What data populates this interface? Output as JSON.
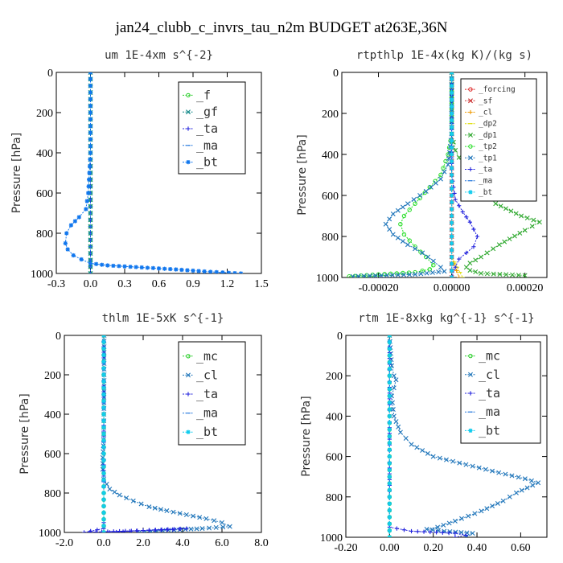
{
  "title": "jan24_clubb_c_invrs_tau_n2m  BUDGET at263E,36N",
  "chart_data": [
    {
      "type": "line",
      "title": "um  1E-4xm s^{-2}",
      "ylabel": "Pressure [hPa]",
      "xlim": [
        -0.3,
        1.5
      ],
      "ylim": [
        1000,
        0
      ],
      "xticks": [
        "-0.3",
        "0.0",
        "0.3",
        "0.6",
        "0.9",
        "1.2",
        "1.5"
      ],
      "xtickvals": [
        -0.3,
        0,
        0.3,
        0.6,
        0.9,
        1.2,
        1.5
      ],
      "yticks": [
        0,
        200,
        400,
        600,
        800,
        1000
      ],
      "legend": {
        "entries": [
          "_f",
          "_gf",
          "_ta",
          "_ma",
          "_bt"
        ]
      },
      "series": [
        {
          "name": "_f",
          "color": "#22cc22",
          "marker": "o",
          "x": [
            0,
            0,
            0,
            0,
            0,
            0,
            0,
            0,
            0,
            0,
            0
          ],
          "y": [
            0,
            100,
            200,
            300,
            400,
            500,
            600,
            700,
            800,
            900,
            1000
          ]
        },
        {
          "name": "_gf",
          "color": "#118888",
          "marker": "x",
          "x": [
            0,
            0,
            0,
            0,
            0,
            0,
            0,
            0,
            0,
            0,
            0
          ],
          "y": [
            0,
            100,
            200,
            300,
            400,
            500,
            600,
            700,
            800,
            900,
            1000
          ]
        },
        {
          "name": "_ta",
          "color": "#2222dd",
          "marker": "+",
          "x": [
            0,
            0,
            0,
            0,
            0,
            0,
            0,
            0,
            0,
            0,
            0
          ],
          "y": [
            0,
            100,
            200,
            300,
            400,
            500,
            600,
            700,
            800,
            900,
            1000
          ]
        },
        {
          "name": "_ma",
          "color": "#2277dd",
          "marker": "-",
          "x": [
            0,
            0,
            0,
            0,
            0,
            0,
            0,
            0,
            0,
            0,
            0
          ],
          "y": [
            0,
            100,
            200,
            300,
            400,
            500,
            600,
            700,
            800,
            900,
            1000
          ]
        },
        {
          "name": "_bt",
          "color": "#1177ee",
          "marker": "*",
          "x": [
            0,
            0,
            0,
            0,
            0,
            -0.01,
            -0.02,
            -0.04,
            -0.1,
            -0.17,
            -0.21,
            -0.22,
            -0.2,
            -0.15,
            -0.08,
            0,
            0.15,
            0.45,
            0.75,
            1.0,
            1.32
          ],
          "y": [
            0,
            100,
            200,
            300,
            400,
            500,
            600,
            680,
            720,
            760,
            800,
            850,
            880,
            910,
            930,
            950,
            960,
            970,
            980,
            990,
            1000
          ]
        }
      ]
    },
    {
      "type": "line",
      "title": "rtpthlp  1E-4x(kg K)/(kg s)",
      "ylabel": "Pressure [hPa]",
      "xlim": [
        -0.0003,
        0.00026
      ],
      "ylim": [
        1000,
        0
      ],
      "xticks": [
        "-0.00020",
        "0.00000",
        "0.00020"
      ],
      "xtickvals": [
        -0.0002,
        0,
        0.0002
      ],
      "yticks": [
        0,
        200,
        400,
        600,
        800,
        1000
      ],
      "legend": {
        "entries": [
          "_forcing",
          "_sf",
          "_cl",
          "_dp2",
          "_dp1",
          "_tp2",
          "_tp1",
          "_ta",
          "_ma",
          "_bt"
        ]
      },
      "series": [
        {
          "name": "_forcing",
          "color": "#dd2222",
          "marker": "o",
          "x": [
            0,
            0,
            0,
            0,
            0,
            0,
            0,
            0,
            0,
            0,
            0
          ],
          "y": [
            0,
            100,
            200,
            300,
            400,
            500,
            600,
            700,
            800,
            900,
            1000
          ]
        },
        {
          "name": "_sf",
          "color": "#cc3333",
          "marker": "x",
          "x": [
            0,
            0,
            0,
            0,
            0,
            0,
            0,
            0,
            0,
            0,
            0
          ],
          "y": [
            0,
            100,
            200,
            300,
            400,
            500,
            600,
            700,
            800,
            900,
            1000
          ]
        },
        {
          "name": "_cl",
          "color": "#ee9900",
          "marker": "+",
          "x": [
            0,
            0,
            0,
            0,
            0,
            0,
            0,
            0,
            0,
            0,
            2e-05
          ],
          "y": [
            0,
            100,
            200,
            300,
            400,
            500,
            600,
            700,
            800,
            900,
            1000
          ]
        },
        {
          "name": "_dp2",
          "color": "#dddd00",
          "marker": "-",
          "x": [
            0,
            0,
            0,
            0,
            0,
            0,
            0,
            0,
            0,
            0,
            3e-05
          ],
          "y": [
            0,
            100,
            200,
            300,
            400,
            500,
            600,
            700,
            800,
            900,
            1000
          ]
        },
        {
          "name": "_dp1",
          "color": "#33aa33",
          "marker": "x",
          "x": [
            0,
            0,
            0,
            1e-05,
            3e-05,
            7e-05,
            0.00012,
            0.00019,
            0.00024,
            0.0002,
            0.00013,
            8e-05,
            5e-05,
            4e-05,
            5e-05,
            8e-05,
            0.0002
          ],
          "y": [
            0,
            200,
            300,
            380,
            450,
            550,
            640,
            700,
            730,
            770,
            840,
            900,
            930,
            950,
            965,
            980,
            990
          ]
        },
        {
          "name": "_tp2",
          "color": "#22dd22",
          "marker": "o",
          "x": [
            0,
            0,
            -1e-05,
            -3e-05,
            -6e-05,
            -0.0001,
            -0.00013,
            -0.00014,
            -0.00013,
            -0.0001,
            -7e-05,
            -5e-05,
            -6e-05,
            -0.0001,
            -0.0002,
            -0.00028
          ],
          "y": [
            0,
            300,
            400,
            500,
            560,
            640,
            700,
            740,
            790,
            850,
            900,
            940,
            960,
            975,
            985,
            995
          ]
        },
        {
          "name": "_tp1",
          "color": "#2277bb",
          "marker": "x",
          "x": [
            0,
            0,
            -1e-05,
            -3e-05,
            -7e-05,
            -0.00012,
            -0.00016,
            -0.00018,
            -0.00016,
            -0.00012,
            -8e-05,
            -5e-05,
            -3e-05,
            -2e-05,
            -0.0001,
            -0.00027
          ],
          "y": [
            0,
            300,
            450,
            520,
            580,
            640,
            690,
            740,
            790,
            840,
            880,
            920,
            950,
            970,
            985,
            995
          ]
        },
        {
          "name": "_ta",
          "color": "#2222dd",
          "marker": "+",
          "x": [
            0,
            0,
            1e-05,
            3e-05,
            5e-05,
            7e-05,
            6e-05,
            4e-05,
            2e-05,
            1e-05,
            0
          ],
          "y": [
            0,
            500,
            620,
            680,
            730,
            800,
            850,
            880,
            910,
            950,
            1000
          ]
        },
        {
          "name": "_ma",
          "color": "#2277dd",
          "marker": "-",
          "x": [
            0,
            0,
            0,
            0,
            0,
            0,
            0,
            0,
            0,
            0,
            0
          ],
          "y": [
            0,
            100,
            200,
            300,
            400,
            500,
            600,
            700,
            800,
            900,
            1000
          ]
        },
        {
          "name": "_bt",
          "color": "#11ccee",
          "marker": "*",
          "x": [
            0,
            0,
            0,
            0,
            0,
            0,
            0,
            0,
            0,
            0,
            0
          ],
          "y": [
            0,
            100,
            200,
            300,
            400,
            500,
            600,
            700,
            800,
            900,
            1000
          ]
        }
      ]
    },
    {
      "type": "line",
      "title": "thlm  1E-5xK s^{-1}",
      "ylabel": "Pressure [hPa]",
      "xlim": [
        -2.0,
        8.0
      ],
      "ylim": [
        1000,
        0
      ],
      "xticks": [
        "-2.0",
        "0.0",
        "2.0",
        "4.0",
        "6.0",
        "8.0"
      ],
      "xtickvals": [
        -2,
        0,
        2,
        4,
        6,
        8
      ],
      "yticks": [
        0,
        200,
        400,
        600,
        800,
        1000
      ],
      "legend": {
        "entries": [
          "_mc",
          "_cl",
          "_ta",
          "_ma",
          "_bt"
        ]
      },
      "series": [
        {
          "name": "_mc",
          "color": "#22cc22",
          "marker": "o",
          "x": [
            0,
            0,
            0,
            0,
            0,
            0,
            0,
            0,
            0,
            0,
            0
          ],
          "y": [
            0,
            100,
            200,
            300,
            400,
            500,
            600,
            700,
            800,
            900,
            1000
          ]
        },
        {
          "name": "_cl",
          "color": "#2277bb",
          "marker": "x",
          "x": [
            0.02,
            0.02,
            0.01,
            0,
            -0.02,
            -0.05,
            -0.05,
            0,
            0.3,
            0.8,
            1.5,
            2.3,
            3.2,
            4.2,
            5.2,
            6.0,
            6.4,
            5.0,
            3.0,
            1.8
          ],
          "y": [
            0,
            200,
            400,
            500,
            560,
            620,
            680,
            730,
            780,
            810,
            840,
            870,
            890,
            910,
            930,
            950,
            970,
            980,
            990,
            1000
          ]
        },
        {
          "name": "_ta",
          "color": "#2222dd",
          "marker": "+",
          "x": [
            0,
            0,
            0,
            0,
            0,
            0,
            0,
            0,
            -1.0,
            0.5,
            2.0,
            3.5,
            4.2,
            2.0,
            0.3
          ],
          "y": [
            0,
            200,
            400,
            600,
            800,
            900,
            950,
            980,
            1000,
            995,
            990,
            985,
            980,
            990,
            1000
          ]
        },
        {
          "name": "_ma",
          "color": "#2277dd",
          "marker": "-",
          "x": [
            0,
            0,
            0,
            0,
            0,
            0,
            0,
            0,
            0,
            0,
            0
          ],
          "y": [
            0,
            100,
            200,
            300,
            400,
            500,
            600,
            700,
            800,
            900,
            1000
          ]
        },
        {
          "name": "_bt",
          "color": "#11ccee",
          "marker": "*",
          "x": [
            0,
            0,
            0,
            0,
            0,
            0,
            0,
            0,
            0,
            0,
            0
          ],
          "y": [
            0,
            100,
            200,
            300,
            400,
            500,
            600,
            700,
            800,
            900,
            1000
          ]
        }
      ]
    },
    {
      "type": "line",
      "title": "rtm  1E-8xkg kg^{-1} s^{-1}",
      "ylabel": "Pressure [hPa]",
      "xlim": [
        -0.2,
        0.72
      ],
      "ylim": [
        1000,
        0
      ],
      "xticks": [
        "-0.20",
        "0.00",
        "0.20",
        "0.40",
        "0.60"
      ],
      "xtickvals": [
        -0.2,
        0,
        0.2,
        0.4,
        0.6
      ],
      "yticks": [
        0,
        200,
        400,
        600,
        800,
        1000
      ],
      "legend": {
        "entries": [
          "_mc",
          "_cl",
          "_ta",
          "_ma",
          "_bt"
        ]
      },
      "series": [
        {
          "name": "_mc",
          "color": "#22cc22",
          "marker": "o",
          "x": [
            0,
            0,
            0,
            0,
            0,
            0,
            0,
            0,
            0,
            0,
            0
          ],
          "y": [
            0,
            100,
            200,
            300,
            400,
            500,
            600,
            700,
            800,
            900,
            1000
          ]
        },
        {
          "name": "_cl",
          "color": "#2277bb",
          "marker": "x",
          "x": [
            0,
            0.01,
            0.02,
            0.03,
            0.02,
            0.01,
            0.02,
            0.05,
            0.1,
            0.2,
            0.35,
            0.5,
            0.62,
            0.68,
            0.58,
            0.52,
            0.42,
            0.3,
            0.22,
            0.17,
            0.25,
            0.38,
            0.35
          ],
          "y": [
            0,
            150,
            200,
            220,
            260,
            300,
            400,
            480,
            540,
            600,
            640,
            680,
            710,
            730,
            780,
            820,
            870,
            920,
            950,
            960,
            970,
            980,
            1000
          ]
        },
        {
          "name": "_ta",
          "color": "#2222dd",
          "marker": "+",
          "x": [
            0,
            0,
            0,
            0,
            0,
            0,
            0,
            0.1,
            0.3,
            0.35,
            0.3
          ],
          "y": [
            0,
            200,
            400,
            600,
            800,
            900,
            950,
            970,
            980,
            990,
            1000
          ]
        },
        {
          "name": "_ma",
          "color": "#2277dd",
          "marker": "-",
          "x": [
            0,
            0,
            0,
            0,
            0,
            0,
            0,
            0,
            0,
            0,
            0
          ],
          "y": [
            0,
            100,
            200,
            300,
            400,
            500,
            600,
            700,
            800,
            900,
            1000
          ]
        },
        {
          "name": "_bt",
          "color": "#11ccee",
          "marker": "*",
          "x": [
            0,
            0,
            0,
            0,
            0,
            0,
            0,
            0,
            0,
            0,
            0
          ],
          "y": [
            0,
            100,
            200,
            300,
            400,
            500,
            600,
            700,
            800,
            900,
            1000
          ]
        }
      ]
    }
  ]
}
